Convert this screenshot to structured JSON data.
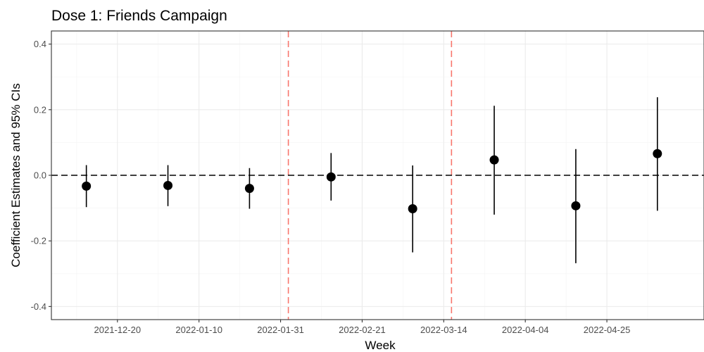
{
  "chart_data": {
    "type": "scatter",
    "title": "Dose 1: Friends Campaign",
    "xlabel": "Week",
    "ylabel": "Coefficient Estimates and 95% CIs",
    "x_axis": "date",
    "xlim": [
      "2021-12-03",
      "2022-05-20"
    ],
    "ylim": [
      -0.44,
      0.44
    ],
    "x_ticks": [
      "2021-12-20",
      "2022-01-10",
      "2022-01-31",
      "2022-02-21",
      "2022-03-14",
      "2022-04-04",
      "2022-04-25"
    ],
    "y_ticks": [
      0.4,
      0.2,
      0.0,
      -0.2,
      -0.4
    ],
    "y_tick_labels": [
      "0.4",
      "0.2",
      "0.0",
      "-0.2",
      "-0.4"
    ],
    "grid": true,
    "reference_line_y": 0,
    "reference_line_color": "#000000",
    "vertical_lines": [
      "2022-02-02",
      "2022-03-16"
    ],
    "vertical_line_color": "#f8766d",
    "point_color": "#000000",
    "series": [
      {
        "points": [
          {
            "x": "2021-12-12",
            "y": -0.033,
            "lo": -0.097,
            "hi": 0.031
          },
          {
            "x": "2022-01-02",
            "y": -0.031,
            "lo": -0.094,
            "hi": 0.031
          },
          {
            "x": "2022-01-23",
            "y": -0.04,
            "lo": -0.102,
            "hi": 0.022
          },
          {
            "x": "2022-02-13",
            "y": -0.005,
            "lo": -0.077,
            "hi": 0.068
          },
          {
            "x": "2022-03-06",
            "y": -0.102,
            "lo": -0.235,
            "hi": 0.03
          },
          {
            "x": "2022-03-27",
            "y": 0.047,
            "lo": -0.12,
            "hi": 0.212
          },
          {
            "x": "2022-04-17",
            "y": -0.093,
            "lo": -0.268,
            "hi": 0.08
          },
          {
            "x": "2022-05-08",
            "y": 0.066,
            "lo": -0.108,
            "hi": 0.238
          }
        ]
      }
    ]
  }
}
